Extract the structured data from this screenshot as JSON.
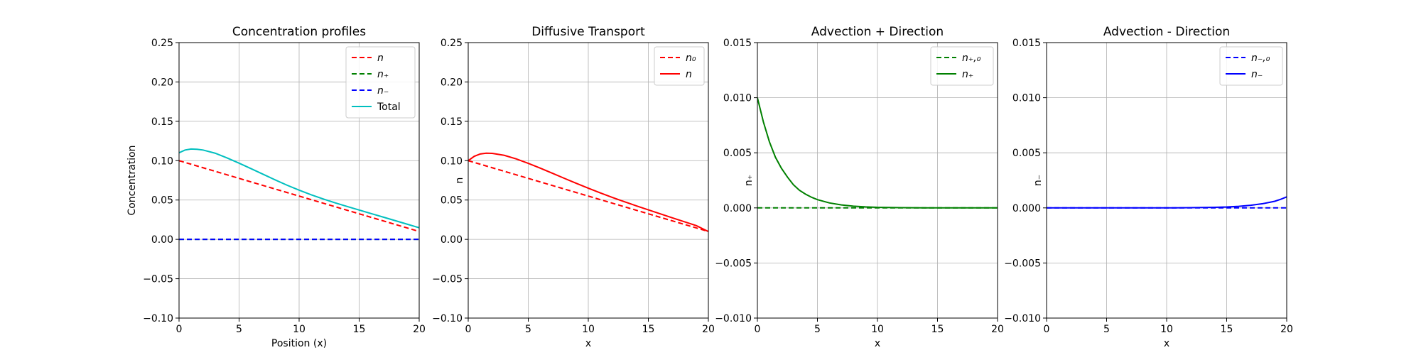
{
  "chart_data": [
    {
      "type": "line",
      "title": "Concentration profiles",
      "xlabel": "Position (x)",
      "ylabel": "Concentration",
      "xlim": [
        0,
        20
      ],
      "ylim": [
        -0.1,
        0.25
      ],
      "xticks": [
        0,
        5,
        10,
        15,
        20
      ],
      "yticks": [
        -0.1,
        -0.05,
        0.0,
        0.05,
        0.1,
        0.15,
        0.2,
        0.25
      ],
      "ytick_labels": [
        "−0.10",
        "−0.05",
        "0.00",
        "0.05",
        "0.10",
        "0.15",
        "0.20",
        "0.25"
      ],
      "grid": true,
      "legend_placement": "upper-right",
      "series": [
        {
          "name": "n",
          "color": "#ff0000",
          "style": "dashed",
          "x": [
            0,
            20
          ],
          "y": [
            0.1,
            0.01
          ]
        },
        {
          "name": "n₊",
          "color": "#008000",
          "style": "dashed",
          "x": [
            0,
            20
          ],
          "y": [
            0.0,
            0.0
          ]
        },
        {
          "name": "n₋",
          "color": "#0000ff",
          "style": "dashed",
          "x": [
            0,
            20
          ],
          "y": [
            0.0,
            0.0
          ]
        },
        {
          "name": "Total",
          "color": "#00bfbf",
          "style": "solid",
          "x": [
            0,
            0.5,
            1,
            1.5,
            2,
            3,
            4,
            5,
            6,
            7,
            8,
            9,
            10,
            11,
            12,
            13,
            14,
            15,
            16,
            17,
            18,
            19,
            20
          ],
          "y": [
            0.11,
            0.1135,
            0.1148,
            0.1145,
            0.1135,
            0.1095,
            0.1035,
            0.0968,
            0.0898,
            0.0827,
            0.0756,
            0.0688,
            0.0625,
            0.0567,
            0.0514,
            0.0464,
            0.0418,
            0.0373,
            0.0328,
            0.0283,
            0.0238,
            0.0193,
            0.0148
          ]
        }
      ]
    },
    {
      "type": "line",
      "title": "Diffusive Transport",
      "xlabel": "x",
      "ylabel": "n",
      "xlim": [
        0,
        20
      ],
      "ylim": [
        -0.1,
        0.25
      ],
      "xticks": [
        0,
        5,
        10,
        15,
        20
      ],
      "yticks": [
        -0.1,
        -0.05,
        0.0,
        0.05,
        0.1,
        0.15,
        0.2,
        0.25
      ],
      "ytick_labels": [
        "−0.10",
        "−0.05",
        "0.00",
        "0.05",
        "0.10",
        "0.15",
        "0.20",
        "0.25"
      ],
      "grid": true,
      "legend_placement": "upper-right",
      "series": [
        {
          "name": "n₀",
          "color": "#ff0000",
          "style": "dashed",
          "x": [
            0,
            20
          ],
          "y": [
            0.1,
            0.01
          ]
        },
        {
          "name": "n",
          "color": "#ff0000",
          "style": "solid",
          "x": [
            0,
            0.5,
            1,
            1.5,
            2,
            3,
            4,
            5,
            6,
            7,
            8,
            9,
            10,
            11,
            12,
            13,
            14,
            15,
            16,
            17,
            18,
            19,
            20
          ],
          "y": [
            0.1,
            0.1055,
            0.1085,
            0.1095,
            0.1093,
            0.1068,
            0.1022,
            0.0966,
            0.0905,
            0.0841,
            0.0776,
            0.0712,
            0.065,
            0.059,
            0.0533,
            0.0479,
            0.0426,
            0.0375,
            0.0324,
            0.0274,
            0.0224,
            0.0174,
            0.01
          ]
        }
      ]
    },
    {
      "type": "line",
      "title": "Advection + Direction",
      "xlabel": "x",
      "ylabel": "n₊",
      "xlim": [
        0,
        20
      ],
      "ylim": [
        -0.01,
        0.015
      ],
      "xticks": [
        0,
        5,
        10,
        15,
        20
      ],
      "yticks": [
        -0.01,
        -0.005,
        0.0,
        0.005,
        0.01,
        0.015
      ],
      "ytick_labels": [
        "−0.010",
        "−0.005",
        "0.000",
        "0.005",
        "0.010",
        "0.015"
      ],
      "grid": true,
      "legend_placement": "upper-right",
      "series": [
        {
          "name": "n₊,₀",
          "color": "#008000",
          "style": "dashed",
          "x": [
            0,
            20
          ],
          "y": [
            0.0,
            0.0
          ]
        },
        {
          "name": "n₊",
          "color": "#008000",
          "style": "solid",
          "x": [
            0,
            0.5,
            1,
            1.5,
            2,
            2.5,
            3,
            3.5,
            4,
            4.5,
            5,
            6,
            7,
            8,
            9,
            10,
            12,
            14,
            16,
            18,
            20
          ],
          "y": [
            0.01,
            0.0078,
            0.006,
            0.0046,
            0.0036,
            0.0028,
            0.0021,
            0.0016,
            0.00125,
            0.00097,
            0.00075,
            0.00045,
            0.00027,
            0.00016,
            9e-05,
            5e-05,
            2e-05,
            0.0,
            0.0,
            0.0,
            0.0
          ]
        }
      ]
    },
    {
      "type": "line",
      "title": "Advection - Direction",
      "xlabel": "x",
      "ylabel": "n₋",
      "xlim": [
        0,
        20
      ],
      "ylim": [
        -0.01,
        0.015
      ],
      "xticks": [
        0,
        5,
        10,
        15,
        20
      ],
      "yticks": [
        -0.01,
        -0.005,
        0.0,
        0.005,
        0.01,
        0.015
      ],
      "ytick_labels": [
        "−0.010",
        "−0.005",
        "0.000",
        "0.005",
        "0.010",
        "0.015"
      ],
      "grid": true,
      "legend_placement": "upper-right",
      "series": [
        {
          "name": "n₋,₀",
          "color": "#0000ff",
          "style": "dashed",
          "x": [
            0,
            20
          ],
          "y": [
            0.0,
            0.0
          ]
        },
        {
          "name": "n₋",
          "color": "#0000ff",
          "style": "solid",
          "x": [
            0,
            10,
            12,
            14,
            15,
            16,
            17,
            18,
            19,
            19.5,
            20
          ],
          "y": [
            0.0,
            0.0,
            2e-05,
            5e-05,
            8e-05,
            0.00014,
            0.00024,
            0.00038,
            0.0006,
            0.00078,
            0.001
          ]
        }
      ]
    }
  ]
}
